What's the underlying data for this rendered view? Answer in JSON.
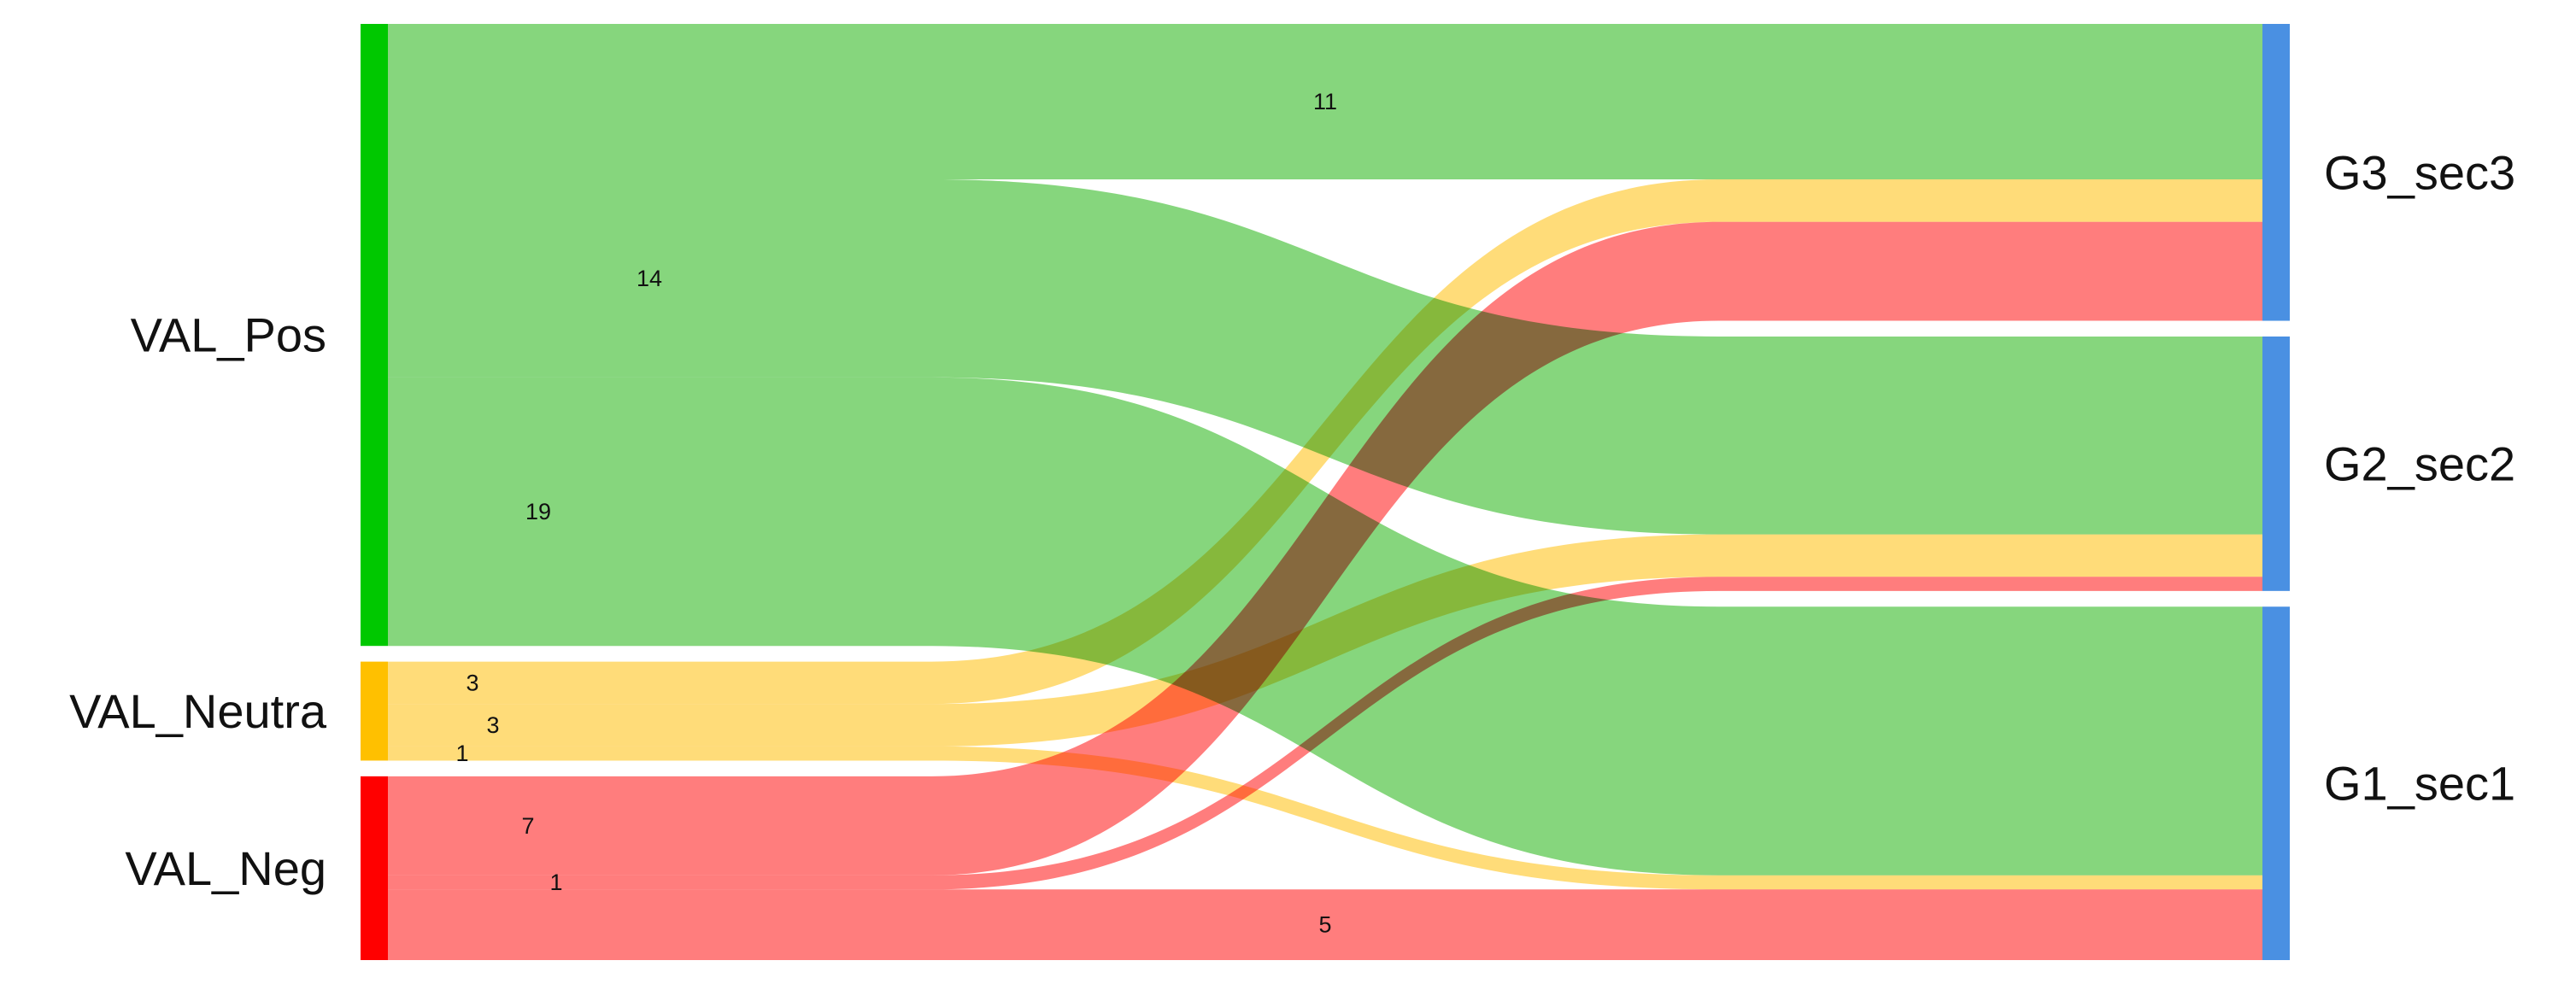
{
  "chart_data": {
    "type": "sankey",
    "sources": [
      {
        "id": "pos",
        "label": "VAL_Pos",
        "color": "#00c800"
      },
      {
        "id": "neu",
        "label": "VAL_Neutra",
        "color": "#ffc000"
      },
      {
        "id": "neg",
        "label": "VAL_Neg",
        "color": "#ff0000"
      }
    ],
    "targets": [
      {
        "id": "g3",
        "label": "G3_sec3",
        "color": "#4a90e2"
      },
      {
        "id": "g2",
        "label": "G2_sec2",
        "color": "#4a90e2"
      },
      {
        "id": "g1",
        "label": "G1_sec1",
        "color": "#4a90e2"
      }
    ],
    "flow_colors": {
      "pos": "#79d16f",
      "neu": "#ffd86a",
      "neg": "#ff6f6f"
    },
    "links": [
      {
        "source": "pos",
        "target": "g3",
        "value": 11,
        "label": "11"
      },
      {
        "source": "pos",
        "target": "g2",
        "value": 14,
        "label": "14"
      },
      {
        "source": "pos",
        "target": "g1",
        "value": 19,
        "label": "19"
      },
      {
        "source": "neu",
        "target": "g3",
        "value": 3,
        "label": "3"
      },
      {
        "source": "neu",
        "target": "g2",
        "value": 3,
        "label": "3"
      },
      {
        "source": "neu",
        "target": "g1",
        "value": 1,
        "label": "1"
      },
      {
        "source": "neg",
        "target": "g3",
        "value": 7,
        "label": "7"
      },
      {
        "source": "neg",
        "target": "g2",
        "value": 1,
        "label": "1"
      },
      {
        "source": "neg",
        "target": "g1",
        "value": 5,
        "label": "5"
      }
    ]
  }
}
